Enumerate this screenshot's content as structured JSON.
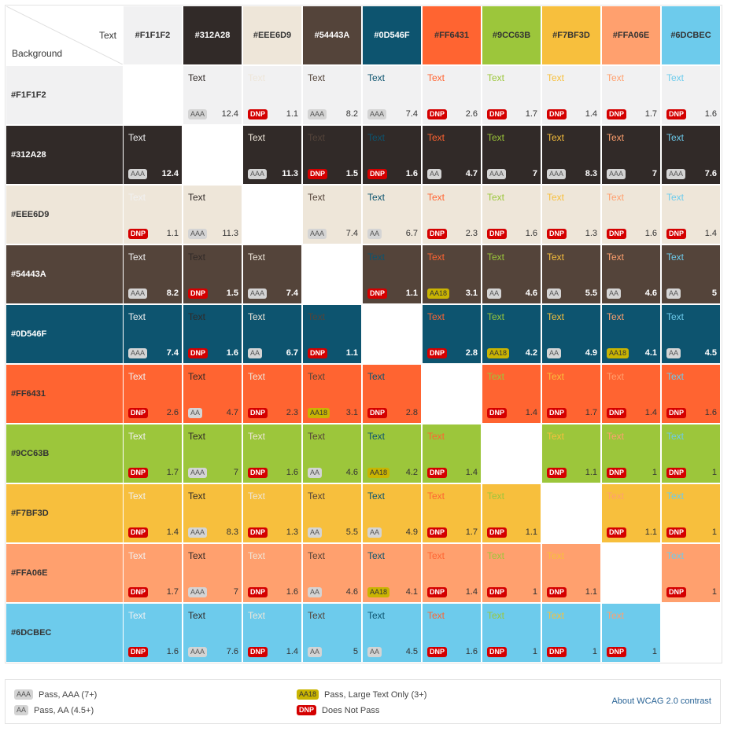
{
  "header": {
    "text_label": "Text",
    "background_label": "Background"
  },
  "colors": [
    {
      "hex": "#F1F1F2",
      "label": "#F1F1F2"
    },
    {
      "hex": "#312A28",
      "label": "#312A28"
    },
    {
      "hex": "#EEE6D9",
      "label": "#EEE6D9"
    },
    {
      "hex": "#54443A",
      "label": "#54443A"
    },
    {
      "hex": "#0D546F",
      "label": "#0D546F"
    },
    {
      "hex": "#FF6431",
      "label": "#FF6431"
    },
    {
      "hex": "#9CC63B",
      "label": "#9CC63B"
    },
    {
      "hex": "#F7BF3D",
      "label": "#F7BF3D"
    },
    {
      "hex": "#FFA06E",
      "label": "#FFA06E"
    },
    {
      "hex": "#6DCBEC",
      "label": "#6DCBEC"
    }
  ],
  "sample_text": "Text",
  "matrix": [
    [
      null,
      {
        "badge": "AAA",
        "ratio": "12.4"
      },
      {
        "badge": "DNP",
        "ratio": "1.1"
      },
      {
        "badge": "AAA",
        "ratio": "8.2"
      },
      {
        "badge": "AAA",
        "ratio": "7.4"
      },
      {
        "badge": "DNP",
        "ratio": "2.6"
      },
      {
        "badge": "DNP",
        "ratio": "1.7"
      },
      {
        "badge": "DNP",
        "ratio": "1.4"
      },
      {
        "badge": "DNP",
        "ratio": "1.7"
      },
      {
        "badge": "DNP",
        "ratio": "1.6"
      }
    ],
    [
      {
        "badge": "AAA",
        "ratio": "12.4"
      },
      null,
      {
        "badge": "AAA",
        "ratio": "11.3"
      },
      {
        "badge": "DNP",
        "ratio": "1.5"
      },
      {
        "badge": "DNP",
        "ratio": "1.6"
      },
      {
        "badge": "AA",
        "ratio": "4.7"
      },
      {
        "badge": "AAA",
        "ratio": "7"
      },
      {
        "badge": "AAA",
        "ratio": "8.3"
      },
      {
        "badge": "AAA",
        "ratio": "7"
      },
      {
        "badge": "AAA",
        "ratio": "7.6"
      }
    ],
    [
      {
        "badge": "DNP",
        "ratio": "1.1"
      },
      {
        "badge": "AAA",
        "ratio": "11.3"
      },
      null,
      {
        "badge": "AAA",
        "ratio": "7.4"
      },
      {
        "badge": "AA",
        "ratio": "6.7"
      },
      {
        "badge": "DNP",
        "ratio": "2.3"
      },
      {
        "badge": "DNP",
        "ratio": "1.6"
      },
      {
        "badge": "DNP",
        "ratio": "1.3"
      },
      {
        "badge": "DNP",
        "ratio": "1.6"
      },
      {
        "badge": "DNP",
        "ratio": "1.4"
      }
    ],
    [
      {
        "badge": "AAA",
        "ratio": "8.2"
      },
      {
        "badge": "DNP",
        "ratio": "1.5"
      },
      {
        "badge": "AAA",
        "ratio": "7.4"
      },
      null,
      {
        "badge": "DNP",
        "ratio": "1.1"
      },
      {
        "badge": "AA18",
        "ratio": "3.1"
      },
      {
        "badge": "AA",
        "ratio": "4.6"
      },
      {
        "badge": "AA",
        "ratio": "5.5"
      },
      {
        "badge": "AA",
        "ratio": "4.6"
      },
      {
        "badge": "AA",
        "ratio": "5"
      }
    ],
    [
      {
        "badge": "AAA",
        "ratio": "7.4"
      },
      {
        "badge": "DNP",
        "ratio": "1.6"
      },
      {
        "badge": "AA",
        "ratio": "6.7"
      },
      {
        "badge": "DNP",
        "ratio": "1.1"
      },
      null,
      {
        "badge": "DNP",
        "ratio": "2.8"
      },
      {
        "badge": "AA18",
        "ratio": "4.2"
      },
      {
        "badge": "AA",
        "ratio": "4.9"
      },
      {
        "badge": "AA18",
        "ratio": "4.1"
      },
      {
        "badge": "AA",
        "ratio": "4.5"
      }
    ],
    [
      {
        "badge": "DNP",
        "ratio": "2.6"
      },
      {
        "badge": "AA",
        "ratio": "4.7"
      },
      {
        "badge": "DNP",
        "ratio": "2.3"
      },
      {
        "badge": "AA18",
        "ratio": "3.1"
      },
      {
        "badge": "DNP",
        "ratio": "2.8"
      },
      null,
      {
        "badge": "DNP",
        "ratio": "1.4"
      },
      {
        "badge": "DNP",
        "ratio": "1.7"
      },
      {
        "badge": "DNP",
        "ratio": "1.4"
      },
      {
        "badge": "DNP",
        "ratio": "1.6"
      }
    ],
    [
      {
        "badge": "DNP",
        "ratio": "1.7"
      },
      {
        "badge": "AAA",
        "ratio": "7"
      },
      {
        "badge": "DNP",
        "ratio": "1.6"
      },
      {
        "badge": "AA",
        "ratio": "4.6"
      },
      {
        "badge": "AA18",
        "ratio": "4.2"
      },
      {
        "badge": "DNP",
        "ratio": "1.4"
      },
      null,
      {
        "badge": "DNP",
        "ratio": "1.1"
      },
      {
        "badge": "DNP",
        "ratio": "1"
      },
      {
        "badge": "DNP",
        "ratio": "1"
      }
    ],
    [
      {
        "badge": "DNP",
        "ratio": "1.4"
      },
      {
        "badge": "AAA",
        "ratio": "8.3"
      },
      {
        "badge": "DNP",
        "ratio": "1.3"
      },
      {
        "badge": "AA",
        "ratio": "5.5"
      },
      {
        "badge": "AA",
        "ratio": "4.9"
      },
      {
        "badge": "DNP",
        "ratio": "1.7"
      },
      {
        "badge": "DNP",
        "ratio": "1.1"
      },
      null,
      {
        "badge": "DNP",
        "ratio": "1.1"
      },
      {
        "badge": "DNP",
        "ratio": "1"
      }
    ],
    [
      {
        "badge": "DNP",
        "ratio": "1.7"
      },
      {
        "badge": "AAA",
        "ratio": "7"
      },
      {
        "badge": "DNP",
        "ratio": "1.6"
      },
      {
        "badge": "AA",
        "ratio": "4.6"
      },
      {
        "badge": "AA18",
        "ratio": "4.1"
      },
      {
        "badge": "DNP",
        "ratio": "1.4"
      },
      {
        "badge": "DNP",
        "ratio": "1"
      },
      {
        "badge": "DNP",
        "ratio": "1.1"
      },
      null,
      {
        "badge": "DNP",
        "ratio": "1"
      }
    ],
    [
      {
        "badge": "DNP",
        "ratio": "1.6"
      },
      {
        "badge": "AAA",
        "ratio": "7.6"
      },
      {
        "badge": "DNP",
        "ratio": "1.4"
      },
      {
        "badge": "AA",
        "ratio": "5"
      },
      {
        "badge": "AA",
        "ratio": "4.5"
      },
      {
        "badge": "DNP",
        "ratio": "1.6"
      },
      {
        "badge": "DNP",
        "ratio": "1"
      },
      {
        "badge": "DNP",
        "ratio": "1"
      },
      {
        "badge": "DNP",
        "ratio": "1"
      },
      null
    ]
  ],
  "legend": {
    "aaa": {
      "badge": "AAA",
      "label": "Pass, AAA (7+)"
    },
    "aa": {
      "badge": "AA",
      "label": "Pass, AA (4.5+)"
    },
    "aa18": {
      "badge": "AA18",
      "label": "Pass, Large Text Only (3+)"
    },
    "dnp": {
      "badge": "DNP",
      "label": "Does Not Pass"
    },
    "about_link": "About WCAG 2.0 contrast"
  }
}
